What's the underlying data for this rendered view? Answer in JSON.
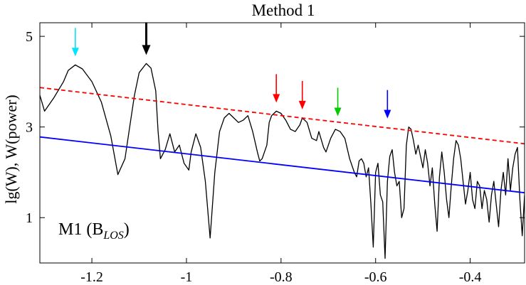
{
  "chart_data": {
    "type": "line",
    "title": "Method 1",
    "ylabel": "lg(W),  W(power)",
    "xlabel": "",
    "xlim": [
      -1.31,
      -0.285
    ],
    "ylim": [
      0.0,
      5.3
    ],
    "xticks": [
      -1.2,
      -1.0,
      -0.8,
      -0.6,
      -0.4
    ],
    "xtick_labels": [
      "-1.2",
      "-1",
      "-0.8",
      "-0.6",
      "-0.4"
    ],
    "yticks": [
      1,
      3,
      5
    ],
    "ytick_labels": [
      "1",
      "3",
      "5"
    ],
    "annotation": {
      "main": "M1 (B",
      "subscript": "LOS",
      "close": ")"
    },
    "grid": false,
    "legend": "none",
    "series": [
      {
        "style": "solid",
        "color": "#000000",
        "points": [
          [
            -1.31,
            3.7
          ],
          [
            -1.3,
            3.35
          ],
          [
            -1.28,
            3.65
          ],
          [
            -1.26,
            4.0
          ],
          [
            -1.25,
            4.25
          ],
          [
            -1.235,
            4.37
          ],
          [
            -1.22,
            4.28
          ],
          [
            -1.2,
            4.0
          ],
          [
            -1.18,
            3.55
          ],
          [
            -1.16,
            2.8
          ],
          [
            -1.145,
            1.95
          ],
          [
            -1.13,
            2.3
          ],
          [
            -1.12,
            3.0
          ],
          [
            -1.11,
            3.7
          ],
          [
            -1.1,
            4.2
          ],
          [
            -1.085,
            4.4
          ],
          [
            -1.075,
            4.3
          ],
          [
            -1.065,
            3.8
          ],
          [
            -1.06,
            2.9
          ],
          [
            -1.055,
            2.3
          ],
          [
            -1.045,
            2.5
          ],
          [
            -1.035,
            2.85
          ],
          [
            -1.025,
            2.45
          ],
          [
            -1.015,
            2.6
          ],
          [
            -1.005,
            2.2
          ],
          [
            -0.995,
            2.05
          ],
          [
            -0.99,
            2.45
          ],
          [
            -0.98,
            2.85
          ],
          [
            -0.97,
            2.55
          ],
          [
            -0.96,
            1.8
          ],
          [
            -0.95,
            0.55
          ],
          [
            -0.94,
            2.0
          ],
          [
            -0.93,
            2.9
          ],
          [
            -0.92,
            3.2
          ],
          [
            -0.91,
            3.3
          ],
          [
            -0.9,
            3.2
          ],
          [
            -0.89,
            3.1
          ],
          [
            -0.88,
            3.15
          ],
          [
            -0.87,
            3.25
          ],
          [
            -0.86,
            2.9
          ],
          [
            -0.85,
            2.45
          ],
          [
            -0.845,
            2.25
          ],
          [
            -0.84,
            2.3
          ],
          [
            -0.83,
            2.6
          ],
          [
            -0.825,
            3.1
          ],
          [
            -0.82,
            3.25
          ],
          [
            -0.81,
            3.35
          ],
          [
            -0.8,
            3.3
          ],
          [
            -0.79,
            3.15
          ],
          [
            -0.78,
            2.95
          ],
          [
            -0.77,
            2.9
          ],
          [
            -0.76,
            3.05
          ],
          [
            -0.755,
            3.2
          ],
          [
            -0.745,
            3.1
          ],
          [
            -0.735,
            2.75
          ],
          [
            -0.725,
            2.7
          ],
          [
            -0.72,
            2.9
          ],
          [
            -0.71,
            2.55
          ],
          [
            -0.705,
            2.45
          ],
          [
            -0.695,
            2.75
          ],
          [
            -0.685,
            2.95
          ],
          [
            -0.675,
            2.9
          ],
          [
            -0.665,
            2.75
          ],
          [
            -0.655,
            2.3
          ],
          [
            -0.645,
            2.0
          ],
          [
            -0.64,
            1.9
          ],
          [
            -0.635,
            2.25
          ],
          [
            -0.63,
            2.3
          ],
          [
            -0.625,
            2.2
          ],
          [
            -0.62,
            1.9
          ],
          [
            -0.615,
            2.1
          ],
          [
            -0.61,
            1.3
          ],
          [
            -0.605,
            0.35
          ],
          [
            -0.6,
            2.0
          ],
          [
            -0.595,
            2.2
          ],
          [
            -0.59,
            1.5
          ],
          [
            -0.585,
            1.35
          ],
          [
            -0.58,
            0.1
          ],
          [
            -0.575,
            1.8
          ],
          [
            -0.57,
            2.35
          ],
          [
            -0.565,
            2.5
          ],
          [
            -0.56,
            2.0
          ],
          [
            -0.555,
            1.7
          ],
          [
            -0.55,
            1.8
          ],
          [
            -0.545,
            1.0
          ],
          [
            -0.54,
            1.2
          ],
          [
            -0.535,
            2.6
          ],
          [
            -0.53,
            3.0
          ],
          [
            -0.525,
            2.95
          ],
          [
            -0.52,
            2.7
          ],
          [
            -0.515,
            2.4
          ],
          [
            -0.51,
            2.6
          ],
          [
            -0.505,
            2.35
          ],
          [
            -0.5,
            2.1
          ],
          [
            -0.495,
            2.5
          ],
          [
            -0.49,
            2.2
          ],
          [
            -0.485,
            1.7
          ],
          [
            -0.48,
            2.1
          ],
          [
            -0.475,
            1.3
          ],
          [
            -0.47,
            0.7
          ],
          [
            -0.465,
            1.9
          ],
          [
            -0.46,
            2.45
          ],
          [
            -0.455,
            2.0
          ],
          [
            -0.45,
            1.4
          ],
          [
            -0.445,
            1.0
          ],
          [
            -0.44,
            1.7
          ],
          [
            -0.435,
            2.3
          ],
          [
            -0.43,
            2.7
          ],
          [
            -0.425,
            2.6
          ],
          [
            -0.42,
            2.3
          ],
          [
            -0.415,
            1.8
          ],
          [
            -0.41,
            1.3
          ],
          [
            -0.405,
            1.6
          ],
          [
            -0.4,
            2.0
          ],
          [
            -0.395,
            1.4
          ],
          [
            -0.39,
            1.2
          ],
          [
            -0.385,
            1.8
          ],
          [
            -0.38,
            1.7
          ],
          [
            -0.375,
            1.2
          ],
          [
            -0.37,
            1.6
          ],
          [
            -0.365,
            1.4
          ],
          [
            -0.36,
            0.9
          ],
          [
            -0.355,
            1.5
          ],
          [
            -0.35,
            1.8
          ],
          [
            -0.345,
            1.3
          ],
          [
            -0.34,
            0.8
          ],
          [
            -0.335,
            1.6
          ],
          [
            -0.33,
            2.0
          ],
          [
            -0.325,
            1.5
          ],
          [
            -0.32,
            2.3
          ],
          [
            -0.315,
            1.6
          ],
          [
            -0.31,
            2.1
          ],
          [
            -0.305,
            2.4
          ],
          [
            -0.3,
            2.55
          ],
          [
            -0.295,
            1.4
          ],
          [
            -0.29,
            0.6
          ],
          [
            -0.285,
            1.5
          ]
        ]
      },
      {
        "style": "dashed",
        "color": "#ff0000",
        "points": [
          [
            -1.31,
            3.87
          ],
          [
            -0.285,
            2.63
          ]
        ]
      },
      {
        "style": "solid",
        "color": "#0000ff",
        "points": [
          [
            -1.31,
            2.78
          ],
          [
            -0.285,
            1.55
          ]
        ]
      }
    ],
    "arrows": [
      {
        "x": -1.235,
        "y": 4.37,
        "color": "#00e5ff",
        "thick": false
      },
      {
        "x": -1.085,
        "y": 4.4,
        "color": "#000000",
        "thick": true
      },
      {
        "x": -0.81,
        "y": 3.35,
        "color": "#ff0000",
        "thick": false
      },
      {
        "x": -0.755,
        "y": 3.2,
        "color": "#ff0000",
        "thick": false
      },
      {
        "x": -0.68,
        "y": 3.05,
        "color": "#00cc00",
        "thick": false
      },
      {
        "x": -0.575,
        "y": 3.0,
        "color": "#0000ff",
        "thick": false
      }
    ]
  }
}
